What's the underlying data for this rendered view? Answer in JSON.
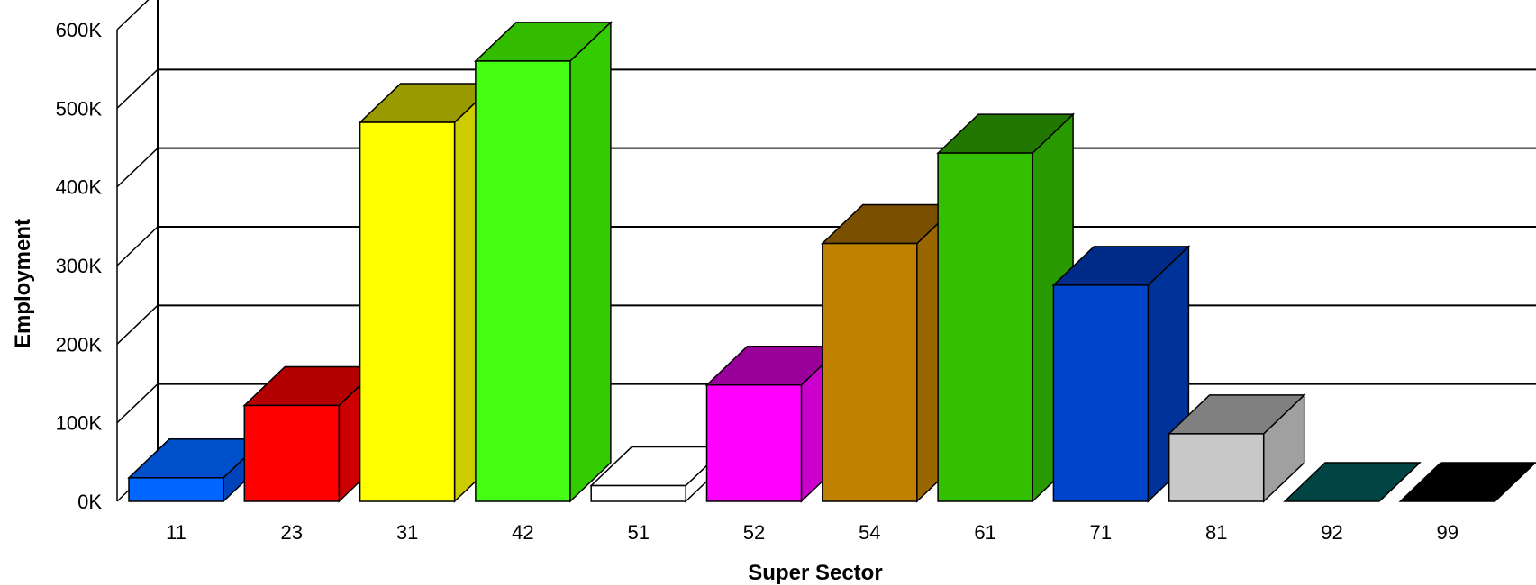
{
  "chart_data": {
    "type": "bar",
    "title": "",
    "xlabel": "Super Sector",
    "ylabel": "Employment",
    "ylim": [
      0,
      600000
    ],
    "yticks": [
      {
        "value": 0,
        "label": "0K"
      },
      {
        "value": 100000,
        "label": "100K"
      },
      {
        "value": 200000,
        "label": "200K"
      },
      {
        "value": 300000,
        "label": "300K"
      },
      {
        "value": 400000,
        "label": "400K"
      },
      {
        "value": 500000,
        "label": "500K"
      },
      {
        "value": 600000,
        "label": "600K"
      }
    ],
    "grid": true,
    "legend": "none",
    "categories": [
      "11",
      "23",
      "31",
      "42",
      "51",
      "52",
      "54",
      "61",
      "71",
      "81",
      "92",
      "99"
    ],
    "values": [
      30000,
      122000,
      482000,
      560000,
      20000,
      148000,
      328000,
      443000,
      275000,
      86000,
      0,
      0
    ],
    "colors": {
      "front": [
        "#0066ff",
        "#ff0000",
        "#ffff00",
        "#44ff11",
        "#ffffff",
        "#ff00ff",
        "#c08000",
        "#33c000",
        "#0044cc",
        "#c8c8c8",
        "#006060",
        "#000000"
      ],
      "top": [
        "#0050cc",
        "#b30000",
        "#999900",
        "#33bb00",
        "#ffffff",
        "#990099",
        "#7a5000",
        "#227700",
        "#002b88",
        "#808080",
        "#004444",
        "#000000"
      ],
      "side": [
        "#0044bb",
        "#cc0000",
        "#cccc00",
        "#33cc00",
        "#ffffff",
        "#cc00cc",
        "#996600",
        "#289900",
        "#003399",
        "#a0a0a0",
        "#005050",
        "#000000"
      ]
    }
  }
}
